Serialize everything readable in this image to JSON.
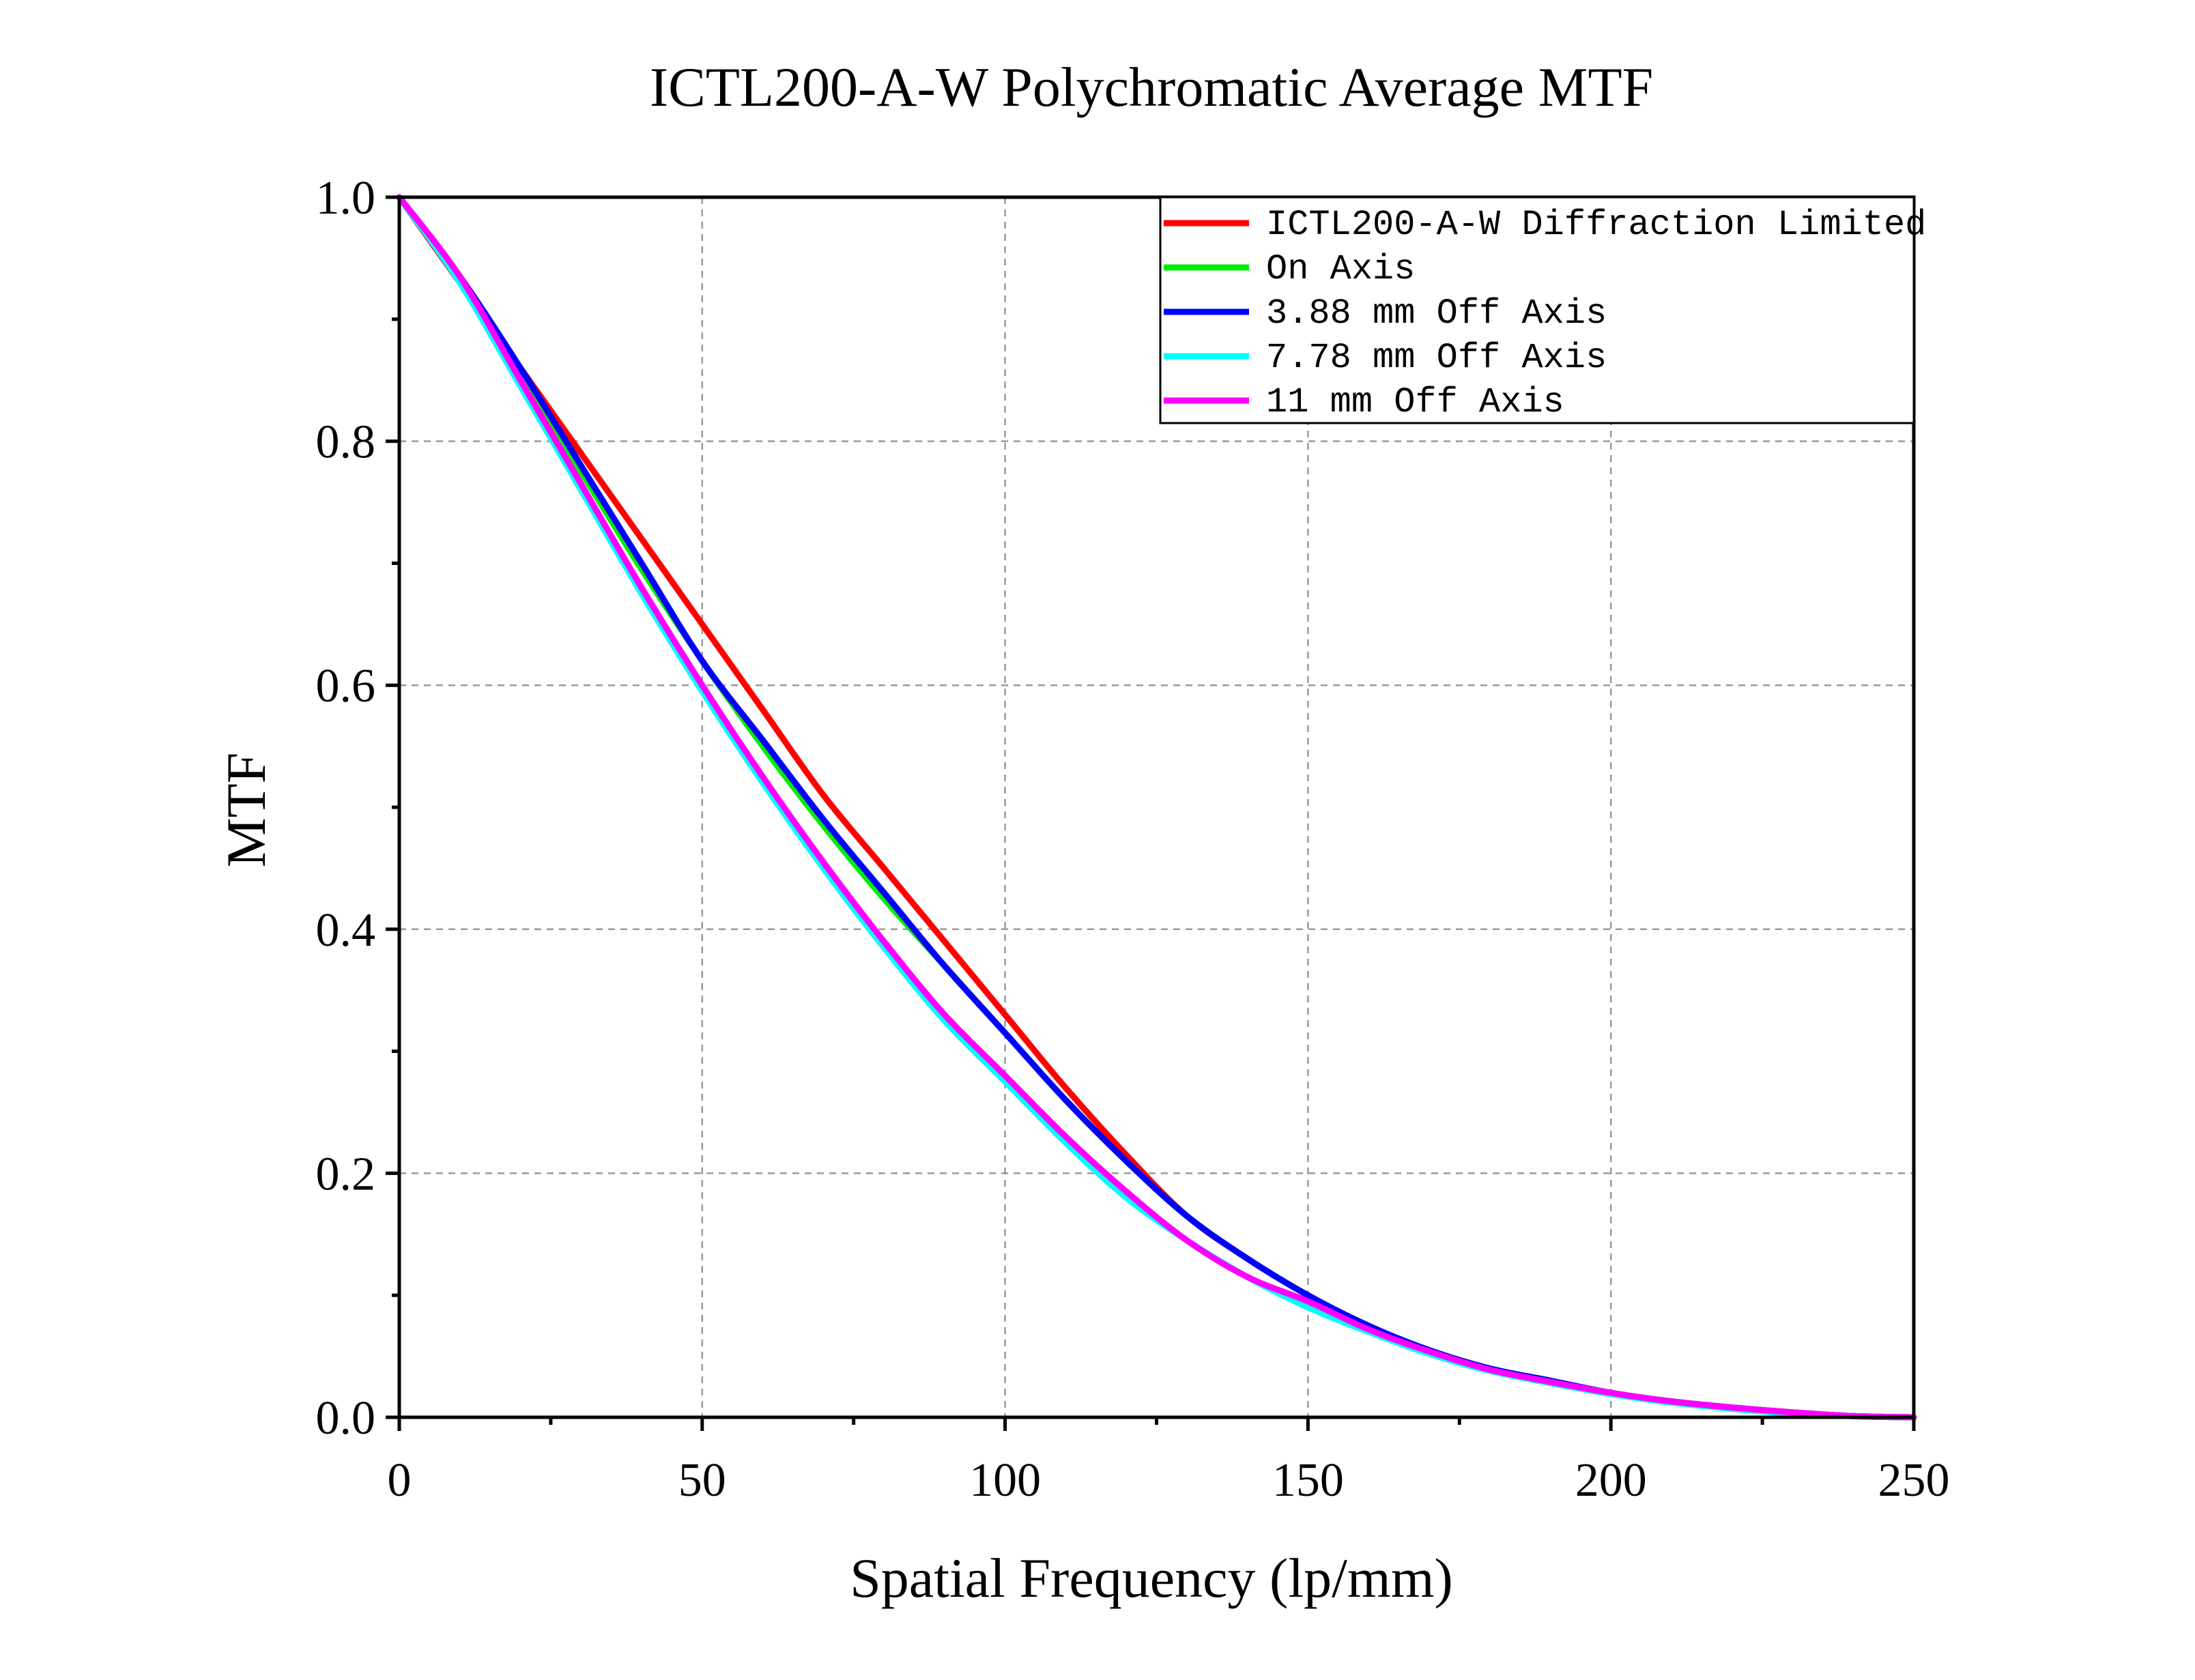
{
  "chart_data": {
    "type": "line",
    "title": "ICTL200-A-W Polychromatic Average MTF",
    "xlabel": "Spatial Frequency (lp/mm)",
    "ylabel": "MTF",
    "xlim": [
      0,
      250
    ],
    "ylim": [
      0,
      1.0
    ],
    "xticks": [
      "0",
      "50",
      "100",
      "150",
      "200",
      "250"
    ],
    "yticks": [
      "0.0",
      "0.2",
      "0.4",
      "0.6",
      "0.8",
      "1.0"
    ],
    "grid": true,
    "legend_position": "top-right",
    "x": [
      0,
      10,
      20,
      30,
      40,
      50,
      60,
      70,
      80,
      90,
      100,
      110,
      120,
      130,
      140,
      150,
      160,
      170,
      180,
      190,
      200,
      210,
      220,
      230,
      240,
      250
    ],
    "series": [
      {
        "name": "ICTL200-A-W Diffraction Limited",
        "color": "#ff0000",
        "values": [
          1.0,
          0.93,
          0.86,
          0.79,
          0.72,
          0.65,
          0.58,
          0.51,
          0.45,
          0.39,
          0.33,
          0.27,
          0.215,
          0.165,
          0.13,
          0.1,
          0.075,
          0.055,
          0.04,
          0.03,
          0.02,
          0.013,
          0.008,
          0.004,
          0.001,
          0.0
        ]
      },
      {
        "name": "On Axis",
        "color": "#00ee00",
        "values": [
          1.0,
          0.935,
          0.855,
          0.775,
          0.695,
          0.62,
          0.55,
          0.485,
          0.425,
          0.37,
          0.315,
          0.26,
          0.21,
          0.165,
          0.13,
          0.1,
          0.075,
          0.055,
          0.04,
          0.03,
          0.02,
          0.013,
          0.008,
          0.004,
          0.001,
          0.0
        ]
      },
      {
        "name": "3.88 mm Off Axis",
        "color": "#0000ff",
        "values": [
          1.0,
          0.935,
          0.86,
          0.78,
          0.7,
          0.62,
          0.555,
          0.49,
          0.43,
          0.37,
          0.315,
          0.26,
          0.21,
          0.165,
          0.13,
          0.1,
          0.075,
          0.055,
          0.04,
          0.03,
          0.02,
          0.013,
          0.008,
          0.004,
          0.001,
          0.0
        ]
      },
      {
        "name": "7.78 mm Off Axis",
        "color": "#00ffff",
        "values": [
          1.0,
          0.93,
          0.845,
          0.76,
          0.675,
          0.595,
          0.52,
          0.45,
          0.385,
          0.325,
          0.275,
          0.225,
          0.18,
          0.145,
          0.115,
          0.09,
          0.07,
          0.052,
          0.038,
          0.028,
          0.019,
          0.012,
          0.007,
          0.003,
          0.001,
          0.0
        ]
      },
      {
        "name": "11 mm Off Axis",
        "color": "#ff00ff",
        "values": [
          1.0,
          0.935,
          0.85,
          0.765,
          0.68,
          0.6,
          0.525,
          0.455,
          0.39,
          0.33,
          0.28,
          0.23,
          0.185,
          0.145,
          0.115,
          0.095,
          0.072,
          0.054,
          0.039,
          0.029,
          0.02,
          0.013,
          0.008,
          0.004,
          0.001,
          0.0
        ]
      }
    ]
  }
}
